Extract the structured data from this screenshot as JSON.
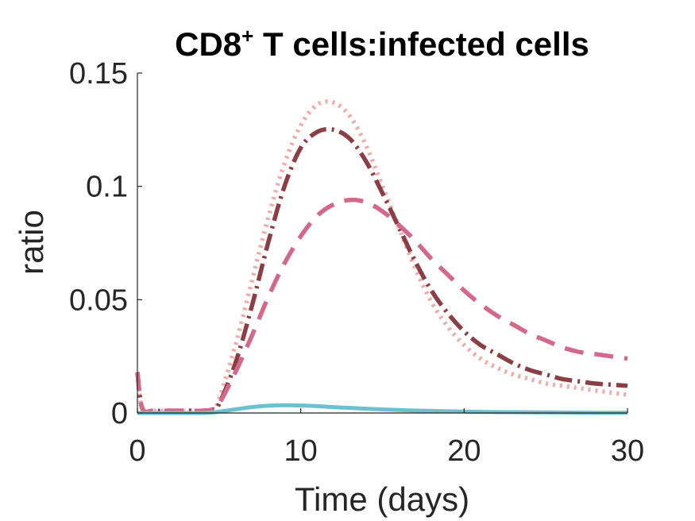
{
  "chart_data": {
    "type": "line",
    "title": "CD8",
    "title_superscript": "+",
    "title_suffix": " T cells:infected cells",
    "xlabel": "Time (days)",
    "ylabel": "ratio",
    "xlim": [
      0,
      30
    ],
    "ylim": [
      0,
      0.15
    ],
    "xticks": [
      0,
      10,
      20,
      30
    ],
    "xtick_labels": [
      "0",
      "10",
      "20",
      "30"
    ],
    "yticks": [
      0,
      0.05,
      0.1,
      0.15
    ],
    "ytick_labels": [
      "0",
      "0.05",
      "0.1",
      "0.15"
    ],
    "grid": false,
    "legend": "none",
    "series": [
      {
        "color": "#f2aaa9",
        "style": "dotted",
        "x": [
          0,
          0.3,
          1,
          2,
          3,
          4,
          4.6,
          5,
          6,
          7,
          8,
          9,
          10,
          11,
          12,
          13,
          14,
          15,
          16,
          17,
          18,
          19,
          20,
          21,
          22,
          23,
          24,
          25,
          26,
          27,
          28,
          29,
          30
        ],
        "y": [
          0.018,
          0.002,
          0.001,
          0.001,
          0.001,
          0.001,
          0.0015,
          0.006,
          0.03,
          0.058,
          0.086,
          0.11,
          0.127,
          0.136,
          0.137,
          0.131,
          0.118,
          0.1,
          0.082,
          0.064,
          0.049,
          0.038,
          0.03,
          0.024,
          0.02,
          0.017,
          0.015,
          0.013,
          0.012,
          0.011,
          0.01,
          0.009,
          0.008
        ]
      },
      {
        "color": "#8b3f45",
        "style": "dash-dot",
        "x": [
          0,
          0.3,
          1,
          2,
          3,
          4,
          4.6,
          5,
          6,
          7,
          8,
          9,
          10,
          11,
          12,
          13,
          14,
          15,
          16,
          17,
          18,
          19,
          20,
          21,
          22,
          23,
          24,
          25,
          26,
          27,
          28,
          29,
          30
        ],
        "y": [
          0.018,
          0.002,
          0.001,
          0.001,
          0.001,
          0.001,
          0.0015,
          0.004,
          0.022,
          0.047,
          0.075,
          0.1,
          0.117,
          0.124,
          0.125,
          0.121,
          0.111,
          0.097,
          0.082,
          0.067,
          0.054,
          0.044,
          0.036,
          0.03,
          0.026,
          0.022,
          0.019,
          0.017,
          0.015,
          0.014,
          0.013,
          0.0125,
          0.012
        ]
      },
      {
        "color": "#d3688b",
        "style": "dashed",
        "x": [
          0,
          0.3,
          1,
          2,
          3,
          4,
          4.6,
          5,
          6,
          7,
          8,
          9,
          10,
          11,
          12,
          13,
          14,
          15,
          16,
          17,
          18,
          19,
          20,
          21,
          22,
          23,
          24,
          25,
          26,
          27,
          28,
          29,
          30
        ],
        "y": [
          0.018,
          0.002,
          0.001,
          0.001,
          0.001,
          0.001,
          0.0015,
          0.004,
          0.018,
          0.034,
          0.051,
          0.066,
          0.078,
          0.087,
          0.092,
          0.094,
          0.093,
          0.089,
          0.083,
          0.076,
          0.068,
          0.061,
          0.054,
          0.048,
          0.043,
          0.039,
          0.035,
          0.032,
          0.029,
          0.027,
          0.026,
          0.025,
          0.024
        ]
      },
      {
        "color": "#6bc1cf",
        "style": "solid",
        "x": [
          0,
          0.3,
          1,
          2,
          3,
          4,
          4.6,
          5,
          6,
          7,
          8,
          9,
          10,
          11,
          12,
          14,
          16,
          18,
          20,
          22,
          24,
          26,
          28,
          30
        ],
        "y": [
          0.0,
          0.0,
          0.0,
          0.0,
          0.0,
          0.0,
          0.0002,
          0.0006,
          0.0016,
          0.0026,
          0.0032,
          0.0034,
          0.0033,
          0.003,
          0.0026,
          0.0019,
          0.0013,
          0.0009,
          0.0006,
          0.0004,
          0.0003,
          0.0002,
          0.0001,
          0.0001
        ]
      }
    ]
  }
}
